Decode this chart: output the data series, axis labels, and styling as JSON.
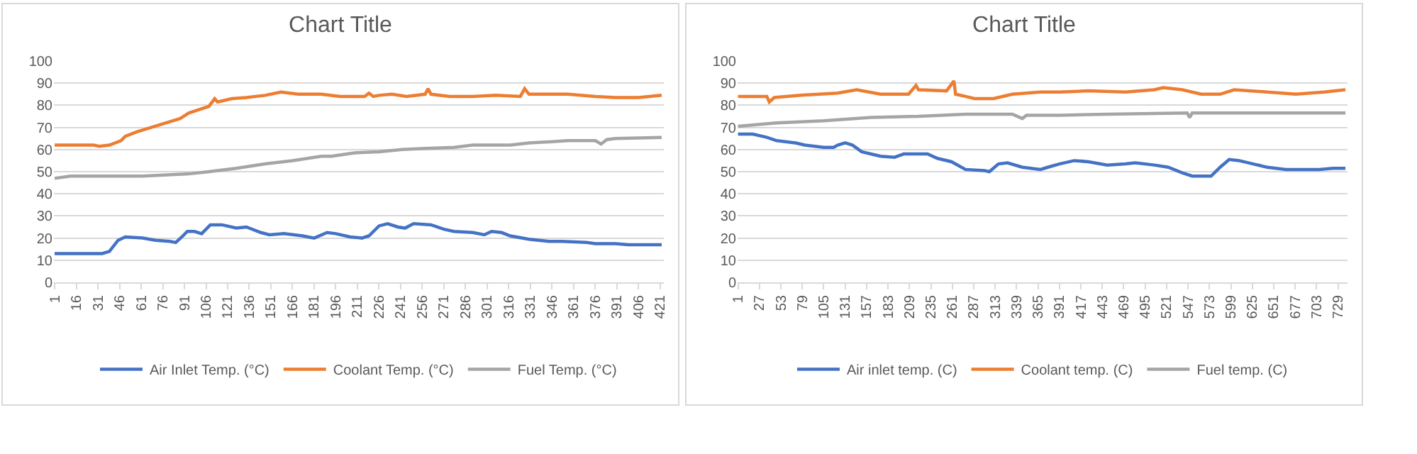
{
  "chart_data": [
    {
      "type": "line",
      "title": "Chart Title",
      "xlim": [
        0.5,
        423.5
      ],
      "xticks": [
        1,
        16,
        31,
        46,
        61,
        76,
        91,
        106,
        121,
        136,
        151,
        166,
        181,
        196,
        211,
        226,
        241,
        256,
        271,
        286,
        301,
        316,
        331,
        346,
        361,
        376,
        391,
        406,
        421
      ],
      "ylim": [
        0,
        100
      ],
      "yticks": [
        0,
        10,
        20,
        30,
        40,
        50,
        60,
        70,
        80,
        90,
        100
      ],
      "grid": "y",
      "legend": "bottom",
      "marker": "none",
      "line_style": "solid",
      "series": [
        {
          "name": "Air Inlet Temp. (°C)",
          "color": "#4472c4",
          "x": [
            1,
            34,
            39,
            45,
            50,
            62,
            71,
            81,
            85,
            90,
            93,
            98,
            103,
            109,
            117,
            127,
            134,
            144,
            150,
            160,
            173,
            181,
            190,
            196,
            206,
            214,
            219,
            226,
            232,
            239,
            244,
            250,
            262,
            271,
            278,
            291,
            299,
            304,
            311,
            317,
            330,
            344,
            353,
            370,
            376,
            390,
            399,
            422
          ],
          "values": [
            13,
            13,
            14,
            19,
            20.5,
            20,
            19,
            18.5,
            18,
            21,
            23,
            23,
            22,
            26,
            26,
            24.5,
            25,
            22.5,
            21.5,
            22,
            21,
            20,
            22.5,
            22,
            20.5,
            20,
            21,
            25.5,
            26.5,
            25,
            24.5,
            26.5,
            26,
            24,
            23,
            22.5,
            21.5,
            23,
            22.5,
            21,
            19.5,
            18.5,
            18.5,
            18,
            17.5,
            17.5,
            17,
            17
          ]
        },
        {
          "name": "Coolant Temp. (°C)",
          "color": "#ed7d31",
          "x": [
            1,
            28,
            32,
            39,
            47,
            50,
            58,
            68,
            78,
            88,
            94,
            101,
            108,
            112,
            114,
            124,
            134,
            147,
            158,
            170,
            186,
            199,
            216,
            219,
            222,
            226,
            235,
            245,
            258,
            260,
            262,
            275,
            291,
            307,
            324,
            327,
            330,
            357,
            376,
            390,
            406,
            422
          ],
          "values": [
            62,
            62,
            61.5,
            62,
            64,
            66,
            68,
            70,
            72,
            74,
            76.5,
            78,
            79.5,
            83,
            81.5,
            83,
            83.5,
            84.5,
            86,
            85,
            85,
            84,
            84,
            85.5,
            84,
            84.5,
            85,
            84,
            85,
            87.5,
            85,
            84,
            84,
            84.5,
            84,
            87.5,
            85,
            85,
            84,
            83.5,
            83.5,
            84.5
          ]
        },
        {
          "name": "Fuel Temp. (°C)",
          "color": "#a5a5a5",
          "x": [
            1,
            12,
            62,
            94,
            108,
            127,
            147,
            166,
            186,
            193,
            209,
            226,
            242,
            258,
            278,
            291,
            317,
            330,
            344,
            357,
            376,
            380,
            384,
            390,
            422
          ],
          "values": [
            47,
            48,
            48,
            49,
            50,
            51.5,
            53.5,
            55,
            57,
            57,
            58.5,
            59,
            60,
            60.5,
            61,
            62,
            62,
            63,
            63.5,
            64,
            64,
            62.5,
            64.5,
            65,
            65.5
          ]
        }
      ]
    },
    {
      "type": "line",
      "title": "Chart Title",
      "xlim": [
        0.5,
        740.5
      ],
      "xticks": [
        1,
        27,
        53,
        79,
        105,
        131,
        157,
        183,
        209,
        235,
        261,
        287,
        313,
        339,
        365,
        391,
        417,
        443,
        469,
        495,
        521,
        547,
        573,
        599,
        625,
        651,
        677,
        703,
        729
      ],
      "ylim": [
        0,
        100
      ],
      "yticks": [
        0,
        10,
        20,
        30,
        40,
        50,
        60,
        70,
        80,
        90,
        100
      ],
      "grid": "y",
      "legend": "bottom",
      "marker": "none",
      "line_style": "solid",
      "series": [
        {
          "name": "Air inlet temp. (C)",
          "color": "#4472c4",
          "x": [
            1,
            19,
            36,
            48,
            71,
            82,
            105,
            117,
            122,
            131,
            140,
            151,
            174,
            191,
            202,
            231,
            243,
            260,
            277,
            300,
            306,
            317,
            328,
            346,
            368,
            377,
            391,
            409,
            426,
            449,
            471,
            483,
            506,
            523,
            540,
            552,
            575,
            586,
            597,
            609,
            626,
            643,
            666,
            689,
            706,
            723,
            738
          ],
          "values": [
            67,
            67,
            65.5,
            64,
            63,
            62,
            61,
            61,
            62,
            63,
            62,
            59,
            57,
            56.5,
            58,
            58,
            56,
            54.5,
            51,
            50.5,
            50,
            53.5,
            54,
            52,
            51,
            52,
            53.5,
            55,
            54.5,
            53,
            53.5,
            54,
            53,
            52,
            49.5,
            48,
            48,
            52,
            55.5,
            55,
            53.5,
            52,
            51,
            51,
            51,
            51.5,
            51.5
          ]
        },
        {
          "name": "Coolant temp. (C)",
          "color": "#ed7d31",
          "x": [
            1,
            36,
            39,
            45,
            77,
            122,
            145,
            174,
            208,
            217,
            220,
            254,
            263,
            265,
            277,
            288,
            311,
            334,
            368,
            391,
            426,
            471,
            506,
            517,
            540,
            563,
            586,
            603,
            643,
            678,
            712,
            738
          ],
          "values": [
            84,
            84,
            81.5,
            83.5,
            84.5,
            85.5,
            87,
            85,
            85,
            89,
            87,
            86.5,
            91,
            85,
            84,
            83,
            83,
            85,
            86,
            86,
            86.5,
            86,
            87,
            88,
            87,
            85,
            85,
            87,
            86,
            85,
            86,
            87
          ]
        },
        {
          "name": "Fuel temp. (C)",
          "color": "#a5a5a5",
          "x": [
            1,
            48,
            105,
            163,
            220,
            277,
            334,
            346,
            351,
            391,
            449,
            546,
            549,
            552,
            620,
            738
          ],
          "values": [
            70.5,
            72,
            73,
            74.5,
            75,
            76,
            76,
            74,
            75.5,
            75.5,
            76,
            76.5,
            74.5,
            76.5,
            76.5,
            76.5
          ]
        }
      ]
    }
  ]
}
